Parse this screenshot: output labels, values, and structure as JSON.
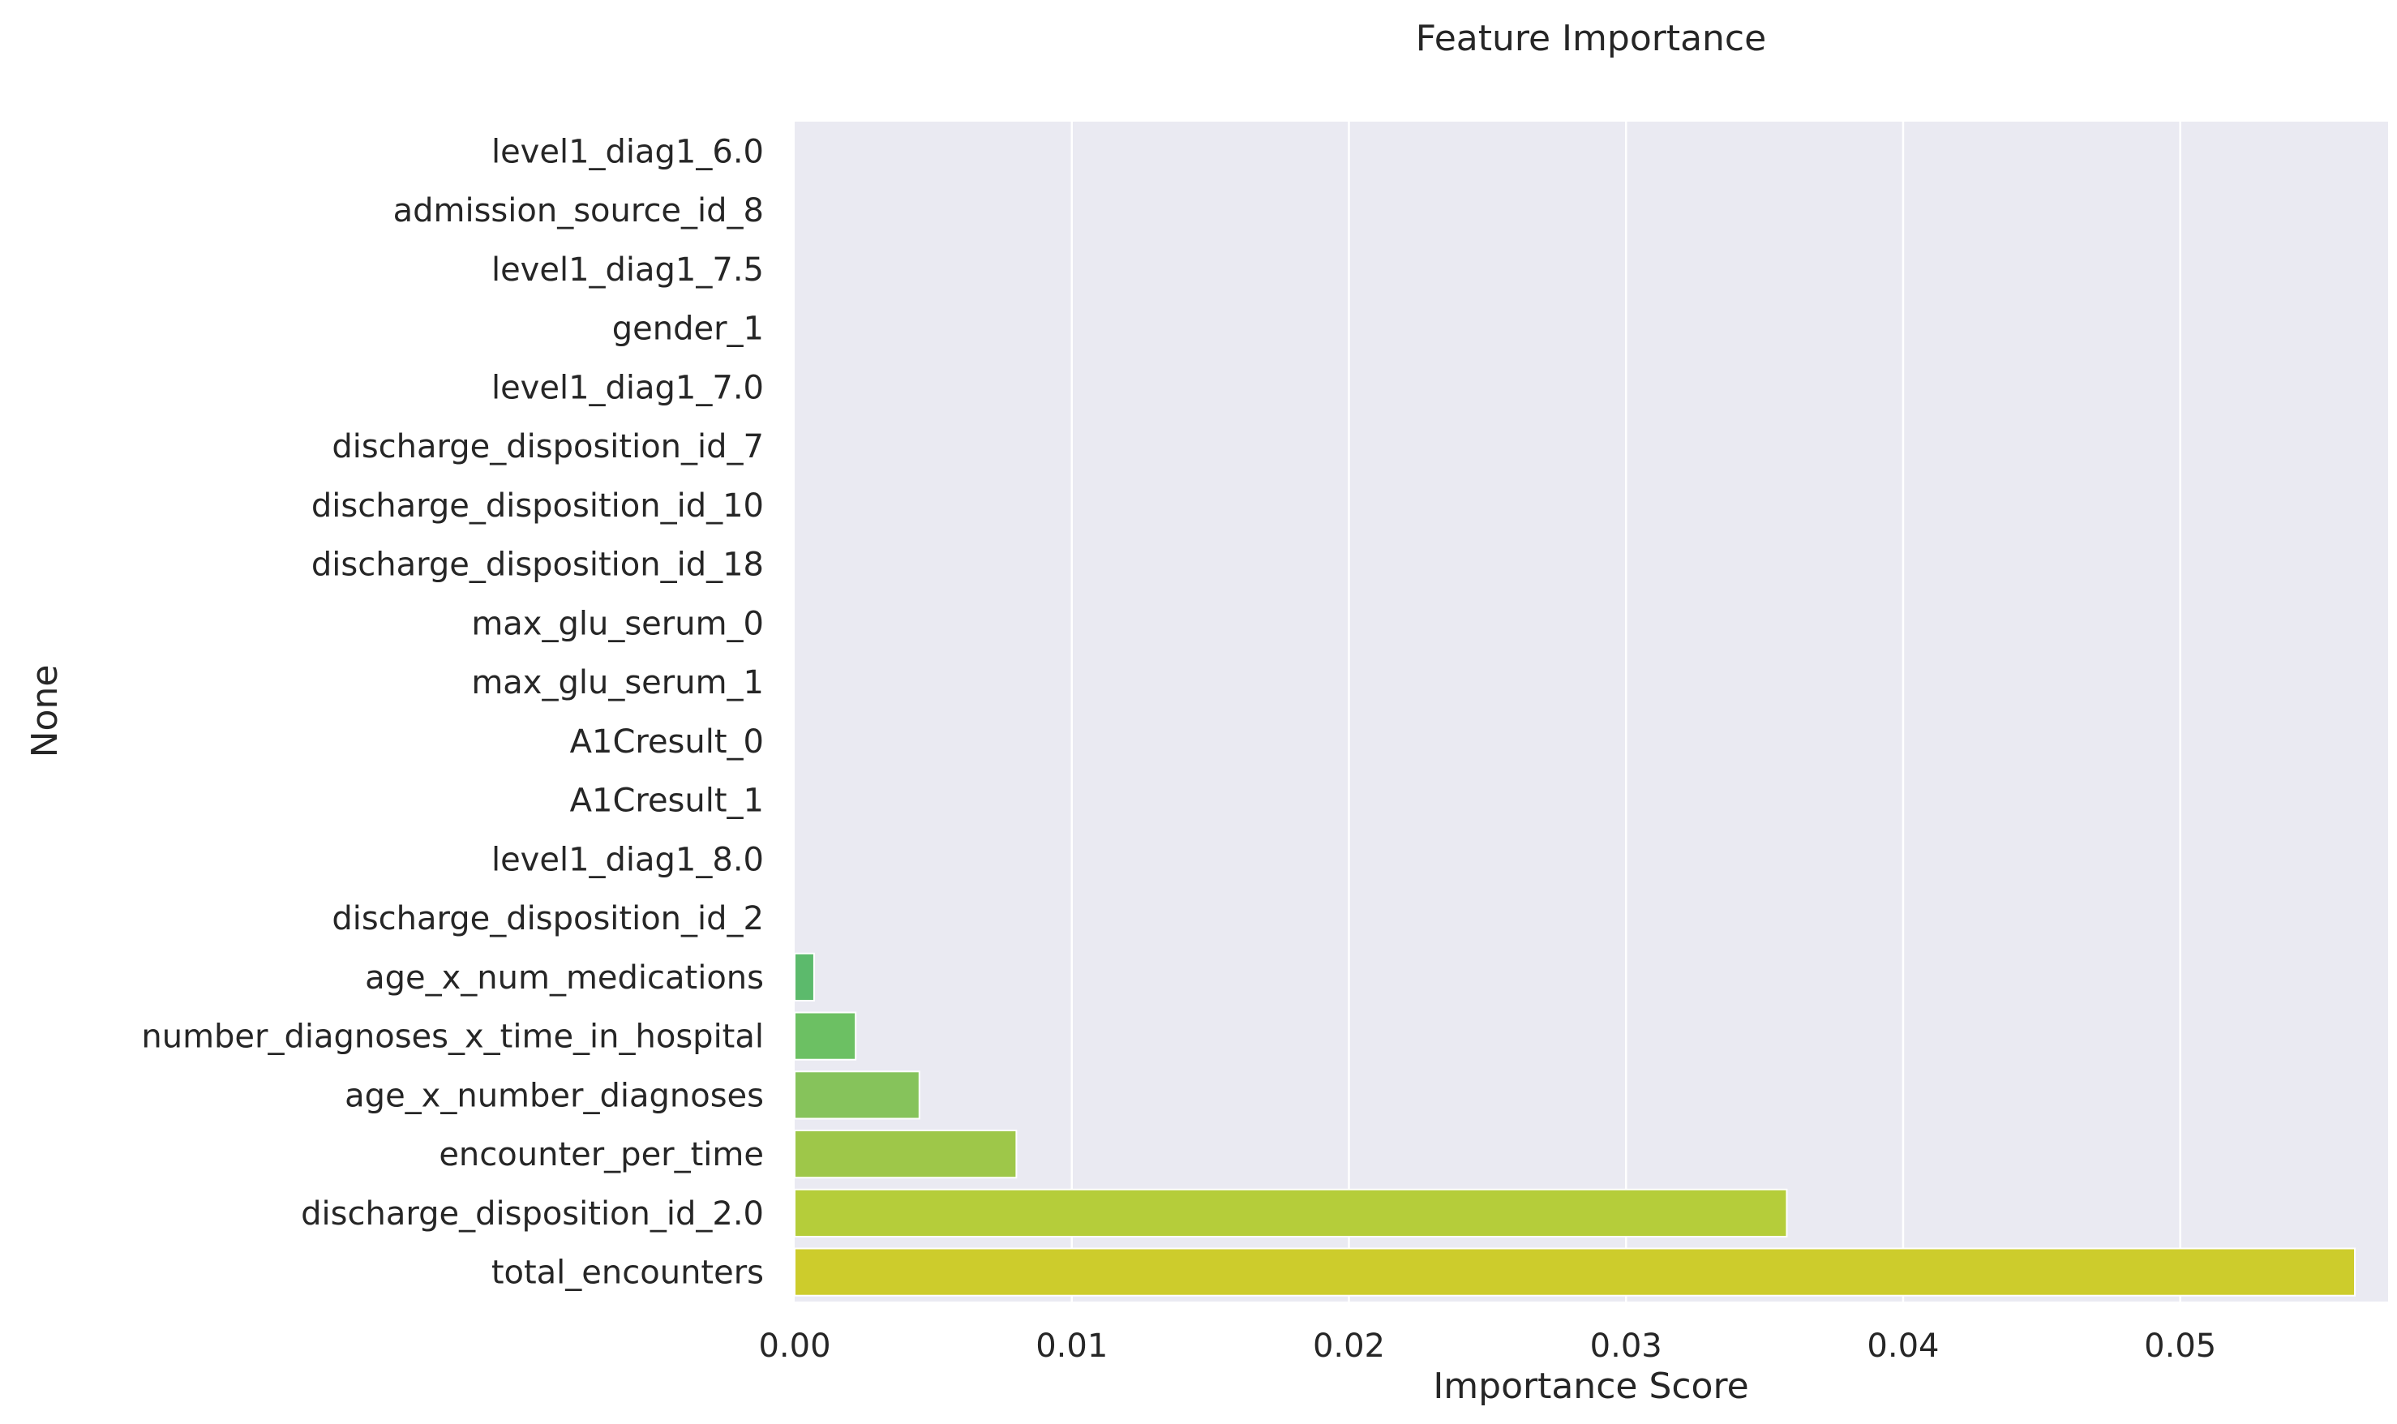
{
  "chart_data": {
    "type": "bar",
    "orientation": "horizontal",
    "title": "Feature Importance",
    "xlabel": "Importance Score",
    "ylabel": "None",
    "xlim": [
      0,
      0.0575
    ],
    "xticks": [
      0.0,
      0.01,
      0.02,
      0.03,
      0.04,
      0.05
    ],
    "xtick_labels": [
      "0.00",
      "0.01",
      "0.02",
      "0.03",
      "0.04",
      "0.05"
    ],
    "grid": true,
    "grid_axis": "x",
    "background": "#eaeaf2",
    "grid_color": "#ffffff",
    "categories": [
      "level1_diag1_6.0",
      "admission_source_id_8",
      "level1_diag1_7.5",
      "gender_1",
      "level1_diag1_7.0",
      "discharge_disposition_id_7",
      "discharge_disposition_id_10",
      "discharge_disposition_id_18",
      "max_glu_serum_0",
      "max_glu_serum_1",
      "A1Cresult_0",
      "A1Cresult_1",
      "level1_diag1_8.0",
      "discharge_disposition_id_2",
      "age_x_num_medications",
      "number_diagnoses_x_time_in_hospital",
      "age_x_number_diagnoses",
      "encounter_per_time",
      "discharge_disposition_id_2.0",
      "total_encounters"
    ],
    "values": [
      0,
      0,
      0,
      0,
      0,
      0,
      0,
      0,
      0,
      0,
      0,
      0,
      0,
      0,
      0.0007,
      0.0022,
      0.0045,
      0.008,
      0.0358,
      0.0563
    ],
    "colors": [
      "#21918c",
      "#23988a",
      "#26a187",
      "#2aa984",
      "#30b07f",
      "#37b87a",
      "#40bf74",
      "#4bc56d",
      "#55c866",
      "#5fca61",
      "#3fbc73",
      "#45c06f",
      "#4ec36b",
      "#55c568",
      "#5cba6c",
      "#6cc063",
      "#86c35b",
      "#9ec749",
      "#b5cd3a",
      "#cdcc2c"
    ]
  }
}
